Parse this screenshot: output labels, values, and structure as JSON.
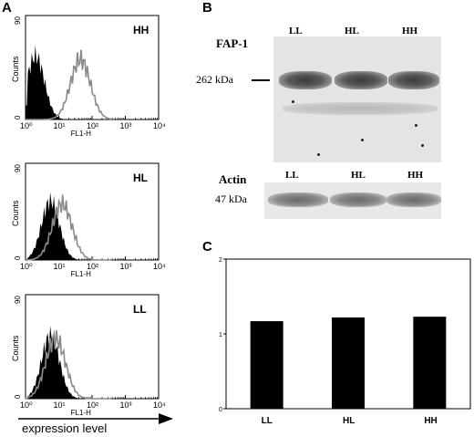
{
  "panels": {
    "a": "A",
    "b": "B",
    "c": "C"
  },
  "flow_histograms": [
    {
      "label": "HH",
      "ylabel": "Counts",
      "xlabel": "FL1-H",
      "yticks": [
        "0",
        "90"
      ],
      "xticks": [
        "10⁰",
        "10¹",
        "10²",
        "10³",
        "10⁴"
      ],
      "control_peak_log": 0.3,
      "sample_peak_log": 1.65
    },
    {
      "label": "HL",
      "ylabel": "Counts",
      "xlabel": "FL1-H",
      "yticks": [
        "0",
        "90"
      ],
      "xticks": [
        "10⁰",
        "10¹",
        "10²",
        "10³",
        "10⁴"
      ],
      "control_peak_log": 0.75,
      "sample_peak_log": 1.1
    },
    {
      "label": "LL",
      "ylabel": "Counts",
      "xlabel": "FL1-H",
      "yticks": [
        "0",
        "90"
      ],
      "xticks": [
        "10⁰",
        "10¹",
        "10²",
        "10³",
        "10⁴"
      ],
      "control_peak_log": 0.75,
      "sample_peak_log": 0.9
    }
  ],
  "expression_axis_label": "expression level",
  "blot": {
    "lanes": [
      "LL",
      "HL",
      "HH"
    ],
    "fap_label": "FAP-1",
    "fap_size": "262 kDa",
    "actin_label": "Actin",
    "actin_size": "47 kDa"
  },
  "chart_data": {
    "type": "bar",
    "categories": [
      "LL",
      "HL",
      "HH"
    ],
    "values": [
      1.17,
      1.22,
      1.23
    ],
    "ylim": [
      0,
      2
    ],
    "yticks": [
      "0",
      "1",
      "2"
    ],
    "xlabel": "",
    "ylabel": "",
    "grid": false
  },
  "colors": {
    "control_fill": "#000000",
    "sample_line": "#8a8a8a",
    "bar": "#000000"
  }
}
